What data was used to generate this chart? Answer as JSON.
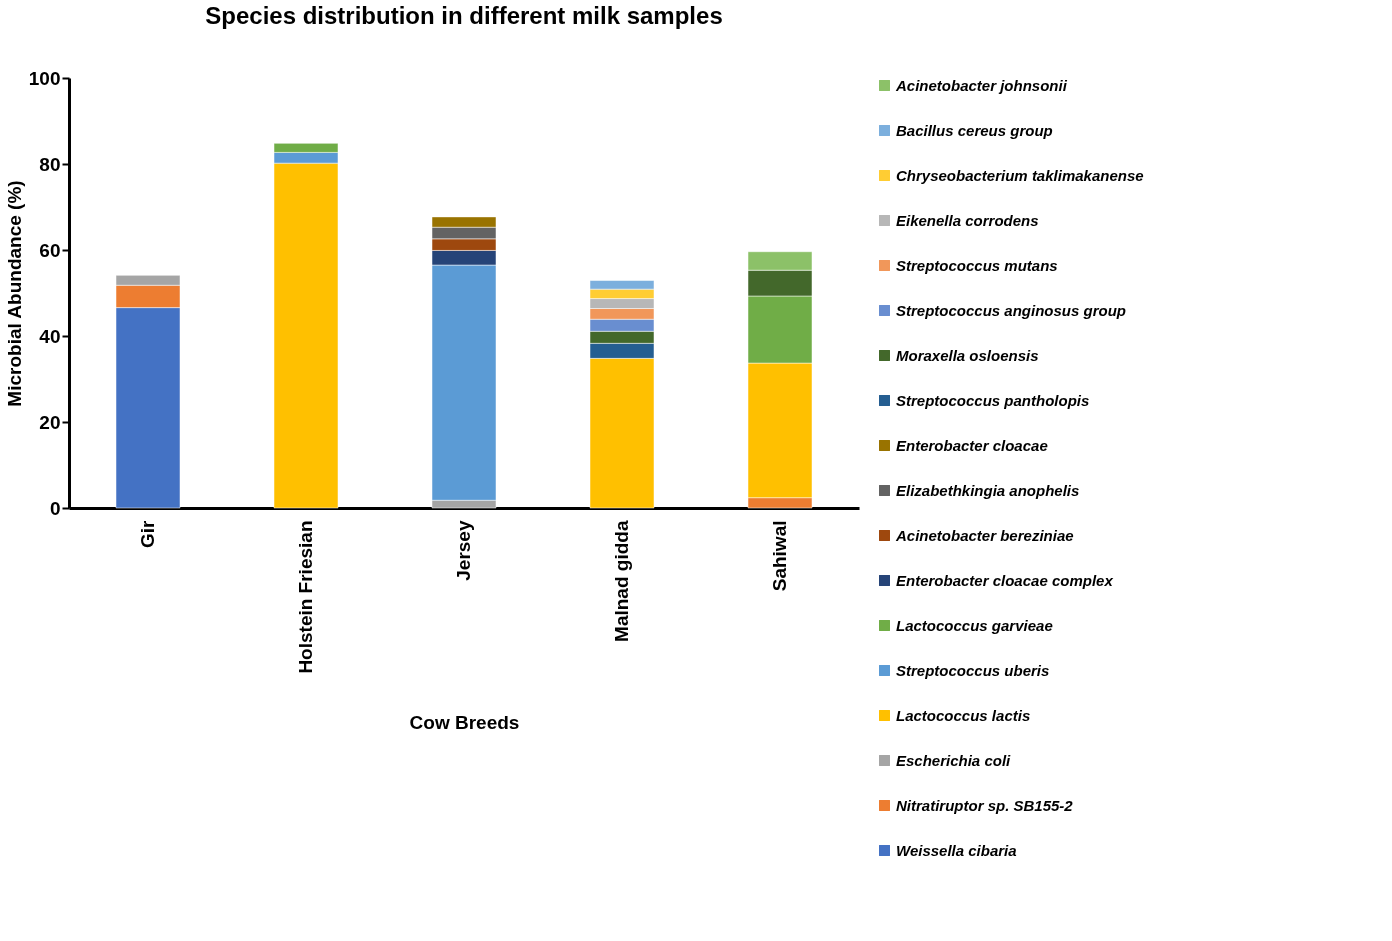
{
  "chart_data": {
    "type": "bar",
    "stacked": true,
    "title": "Species distribution in different milk samples",
    "xlabel": "Cow Breeds",
    "ylabel": "Microbial Abundance (%)",
    "categories": [
      "Gir",
      "Holstein Friesian",
      "Jersey",
      "Malnad gidda",
      "Sahiwal"
    ],
    "ylim": [
      0,
      100
    ],
    "yticks": [
      0,
      20,
      40,
      60,
      80,
      100
    ],
    "grid": false,
    "legend": "right",
    "series": [
      {
        "name": "Weissella cibaria",
        "color": "#4472c4",
        "values": [
          46.6,
          null,
          null,
          null,
          null
        ]
      },
      {
        "name": "Nitratiruptor sp. SB155-2",
        "color": "#ed7d31",
        "values": [
          5.2,
          null,
          null,
          null,
          2.4
        ]
      },
      {
        "name": "Escherichia coli",
        "color": "#a5a5a5",
        "values": [
          2.3,
          null,
          1.8,
          null,
          null
        ]
      },
      {
        "name": "Lactococcus lactis",
        "color": "#ffc000",
        "values": [
          null,
          80.2,
          null,
          34.8,
          31.3
        ]
      },
      {
        "name": "Streptococcus uberis",
        "color": "#5b9bd5",
        "values": [
          null,
          2.5,
          54.7,
          null,
          null
        ]
      },
      {
        "name": "Lactococcus garvieae",
        "color": "#70ad47",
        "values": [
          null,
          2.1,
          null,
          null,
          15.6
        ]
      },
      {
        "name": "Enterobacter cloacae complex",
        "color": "#264478",
        "values": [
          null,
          null,
          3.4,
          null,
          null
        ]
      },
      {
        "name": "Acinetobacter bereziniae",
        "color": "#9e480e",
        "values": [
          null,
          null,
          2.7,
          null,
          null
        ]
      },
      {
        "name": "Elizabethkingia anophelis",
        "color": "#636363",
        "values": [
          null,
          null,
          2.7,
          null,
          null
        ]
      },
      {
        "name": "Enterobacter cloacae",
        "color": "#997300",
        "values": [
          null,
          null,
          2.4,
          null,
          null
        ]
      },
      {
        "name": "Streptococcus pantholopis",
        "color": "#255e91",
        "values": [
          null,
          null,
          null,
          3.5,
          null
        ]
      },
      {
        "name": "Moraxella osloensis",
        "color": "#43682b",
        "values": [
          null,
          null,
          null,
          2.8,
          6.0
        ]
      },
      {
        "name": "Streptococcus anginosus group",
        "color": "#698ed0",
        "values": [
          null,
          null,
          null,
          2.8,
          null
        ]
      },
      {
        "name": "Streptococcus mutans",
        "color": "#f1975a",
        "values": [
          null,
          null,
          null,
          2.5,
          null
        ]
      },
      {
        "name": "Eikenella corrodens",
        "color": "#b7b7b7",
        "values": [
          null,
          null,
          null,
          2.3,
          null
        ]
      },
      {
        "name": "Chryseobacterium taklimakanense",
        "color": "#ffcd33",
        "values": [
          null,
          null,
          null,
          2.2,
          null
        ]
      },
      {
        "name": "Bacillus cereus group",
        "color": "#7cafdd",
        "values": [
          null,
          null,
          null,
          2.0,
          null
        ]
      },
      {
        "name": "Acinetobacter johnsonii",
        "color": "#8cc168",
        "values": [
          null,
          null,
          null,
          null,
          4.3
        ]
      }
    ]
  }
}
